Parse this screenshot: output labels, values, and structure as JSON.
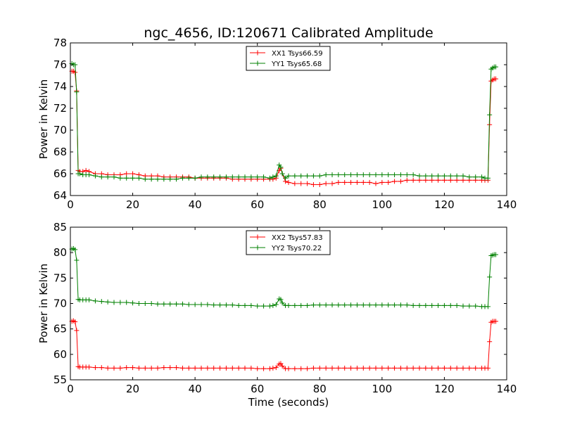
{
  "figure": {
    "title": "ngc_4656, ID:120671 Calibrated Amplitude"
  },
  "chart_data": [
    {
      "type": "line",
      "ylabel": "Power in Kelvin",
      "xlabel": "",
      "xlim": [
        0,
        140
      ],
      "ylim": [
        64,
        78
      ],
      "xticks": [
        0,
        20,
        40,
        60,
        80,
        100,
        120,
        140
      ],
      "yticks": [
        64,
        66,
        68,
        70,
        72,
        74,
        76,
        78
      ],
      "grid": false,
      "legend_position": "top-center",
      "series": [
        {
          "name": "XX1 Tsys66.59",
          "color": "#ff0000",
          "marker": "+",
          "x": [
            0.5,
            1,
            1.5,
            2,
            2.5,
            3,
            4,
            5,
            6,
            8,
            10,
            12,
            14,
            16,
            18,
            20,
            22,
            24,
            26,
            28,
            30,
            32,
            34,
            36,
            38,
            40,
            42,
            44,
            46,
            48,
            50,
            52,
            54,
            56,
            58,
            60,
            62,
            64,
            65,
            66,
            67,
            67.5,
            68,
            69,
            70,
            72,
            74,
            76,
            78,
            80,
            82,
            84,
            86,
            88,
            90,
            92,
            94,
            96,
            98,
            100,
            102,
            104,
            106,
            108,
            110,
            112,
            114,
            116,
            118,
            120,
            122,
            124,
            126,
            128,
            130,
            132,
            133,
            134,
            134.5,
            135,
            135.5,
            136,
            136.5
          ],
          "y": [
            75.4,
            75.4,
            75.3,
            73.6,
            66.3,
            66.2,
            66.2,
            66.3,
            66.2,
            66.0,
            66.0,
            65.9,
            65.9,
            65.9,
            66.0,
            66.0,
            65.9,
            65.8,
            65.8,
            65.8,
            65.7,
            65.7,
            65.7,
            65.7,
            65.7,
            65.6,
            65.6,
            65.6,
            65.6,
            65.6,
            65.6,
            65.5,
            65.5,
            65.5,
            65.5,
            65.5,
            65.5,
            65.5,
            65.5,
            65.6,
            66.3,
            66.5,
            66.0,
            65.3,
            65.2,
            65.1,
            65.1,
            65.1,
            65.0,
            65.0,
            65.1,
            65.1,
            65.2,
            65.2,
            65.2,
            65.2,
            65.2,
            65.2,
            65.1,
            65.2,
            65.2,
            65.3,
            65.3,
            65.4,
            65.4,
            65.4,
            65.4,
            65.4,
            65.4,
            65.4,
            65.4,
            65.4,
            65.4,
            65.4,
            65.4,
            65.4,
            65.4,
            65.4,
            70.5,
            74.5,
            74.6,
            74.7,
            74.7
          ]
        },
        {
          "name": "YY1 Tsys65.68",
          "color": "#008000",
          "marker": "+",
          "x": [
            0.5,
            1,
            1.5,
            2,
            2.5,
            3,
            4,
            5,
            6,
            8,
            10,
            12,
            14,
            16,
            18,
            20,
            22,
            24,
            26,
            28,
            30,
            32,
            34,
            36,
            38,
            40,
            42,
            44,
            46,
            48,
            50,
            52,
            54,
            56,
            58,
            60,
            62,
            64,
            65,
            66,
            67,
            67.5,
            68,
            69,
            70,
            72,
            74,
            76,
            78,
            80,
            82,
            84,
            86,
            88,
            90,
            92,
            94,
            96,
            98,
            100,
            102,
            104,
            106,
            108,
            110,
            112,
            114,
            116,
            118,
            120,
            122,
            124,
            126,
            128,
            130,
            132,
            133,
            134,
            134.5,
            135,
            135.5,
            136,
            136.5
          ],
          "y": [
            76.1,
            76.0,
            76.0,
            73.5,
            66.0,
            66.0,
            65.9,
            65.9,
            65.9,
            65.8,
            65.7,
            65.7,
            65.7,
            65.6,
            65.6,
            65.6,
            65.6,
            65.5,
            65.5,
            65.5,
            65.5,
            65.5,
            65.5,
            65.6,
            65.6,
            65.6,
            65.7,
            65.7,
            65.7,
            65.7,
            65.7,
            65.7,
            65.7,
            65.7,
            65.7,
            65.7,
            65.7,
            65.6,
            65.7,
            65.8,
            66.8,
            66.6,
            66.0,
            65.6,
            65.8,
            65.8,
            65.8,
            65.8,
            65.8,
            65.8,
            65.9,
            65.9,
            65.9,
            65.9,
            65.9,
            65.9,
            65.9,
            65.9,
            65.9,
            65.9,
            65.9,
            65.9,
            65.9,
            65.9,
            65.9,
            65.8,
            65.8,
            65.8,
            65.8,
            65.8,
            65.8,
            65.8,
            65.8,
            65.7,
            65.7,
            65.7,
            65.6,
            65.6,
            71.4,
            75.6,
            75.7,
            75.8,
            75.8
          ]
        }
      ]
    },
    {
      "type": "line",
      "ylabel": "Power in Kelvin",
      "xlabel": "Time (seconds)",
      "xlim": [
        0,
        140
      ],
      "ylim": [
        55,
        85
      ],
      "xticks": [
        0,
        20,
        40,
        60,
        80,
        100,
        120,
        140
      ],
      "yticks": [
        55,
        60,
        65,
        70,
        75,
        80,
        85
      ],
      "grid": false,
      "legend_position": "top-center",
      "series": [
        {
          "name": "XX2 Tsys57.83",
          "color": "#ff0000",
          "marker": "+",
          "x": [
            0.5,
            1,
            1.5,
            2,
            2.5,
            3,
            4,
            5,
            6,
            8,
            10,
            12,
            14,
            16,
            18,
            20,
            22,
            24,
            26,
            28,
            30,
            32,
            34,
            36,
            38,
            40,
            42,
            44,
            46,
            48,
            50,
            52,
            54,
            56,
            58,
            60,
            62,
            64,
            65,
            66,
            67,
            67.5,
            68,
            69,
            70,
            72,
            74,
            76,
            78,
            80,
            82,
            84,
            86,
            88,
            90,
            92,
            94,
            96,
            98,
            100,
            102,
            104,
            106,
            108,
            110,
            112,
            114,
            116,
            118,
            120,
            122,
            124,
            126,
            128,
            130,
            132,
            133,
            134,
            134.5,
            135,
            135.5,
            136,
            136.5
          ],
          "y": [
            66.5,
            66.6,
            66.4,
            64.7,
            57.6,
            57.5,
            57.5,
            57.5,
            57.5,
            57.4,
            57.4,
            57.3,
            57.3,
            57.3,
            57.4,
            57.4,
            57.3,
            57.3,
            57.3,
            57.3,
            57.4,
            57.4,
            57.4,
            57.3,
            57.3,
            57.3,
            57.3,
            57.3,
            57.3,
            57.3,
            57.3,
            57.3,
            57.3,
            57.3,
            57.3,
            57.2,
            57.2,
            57.2,
            57.3,
            57.4,
            58.1,
            58.2,
            57.7,
            57.2,
            57.2,
            57.2,
            57.2,
            57.2,
            57.3,
            57.3,
            57.3,
            57.3,
            57.3,
            57.3,
            57.3,
            57.3,
            57.3,
            57.3,
            57.3,
            57.3,
            57.3,
            57.3,
            57.3,
            57.3,
            57.3,
            57.3,
            57.3,
            57.3,
            57.3,
            57.3,
            57.3,
            57.3,
            57.3,
            57.3,
            57.3,
            57.3,
            57.3,
            57.3,
            62.5,
            66.3,
            66.5,
            66.5,
            66.5
          ]
        },
        {
          "name": "YY2 Tsys70.22",
          "color": "#008000",
          "marker": "+",
          "x": [
            0.5,
            1,
            1.5,
            2,
            2.5,
            3,
            4,
            5,
            6,
            8,
            10,
            12,
            14,
            16,
            18,
            20,
            22,
            24,
            26,
            28,
            30,
            32,
            34,
            36,
            38,
            40,
            42,
            44,
            46,
            48,
            50,
            52,
            54,
            56,
            58,
            60,
            62,
            64,
            65,
            66,
            67,
            67.5,
            68,
            69,
            70,
            72,
            74,
            76,
            78,
            80,
            82,
            84,
            86,
            88,
            90,
            92,
            94,
            96,
            98,
            100,
            102,
            104,
            106,
            108,
            110,
            112,
            114,
            116,
            118,
            120,
            122,
            124,
            126,
            128,
            130,
            132,
            133,
            134,
            134.5,
            135,
            135.5,
            136,
            136.5
          ],
          "y": [
            80.7,
            80.8,
            80.6,
            78.5,
            70.8,
            70.7,
            70.7,
            70.7,
            70.7,
            70.5,
            70.4,
            70.3,
            70.2,
            70.2,
            70.2,
            70.1,
            70.0,
            70.0,
            70.0,
            69.9,
            69.9,
            69.9,
            69.9,
            69.9,
            69.8,
            69.8,
            69.8,
            69.8,
            69.7,
            69.7,
            69.7,
            69.7,
            69.6,
            69.6,
            69.6,
            69.5,
            69.5,
            69.5,
            69.6,
            69.8,
            70.9,
            70.8,
            70.1,
            69.6,
            69.6,
            69.6,
            69.6,
            69.6,
            69.7,
            69.7,
            69.7,
            69.7,
            69.7,
            69.7,
            69.7,
            69.7,
            69.7,
            69.7,
            69.7,
            69.7,
            69.7,
            69.7,
            69.7,
            69.7,
            69.6,
            69.6,
            69.6,
            69.6,
            69.6,
            69.6,
            69.6,
            69.6,
            69.5,
            69.5,
            69.5,
            69.4,
            69.4,
            69.4,
            75.2,
            79.4,
            79.5,
            79.6,
            79.6
          ]
        }
      ]
    }
  ]
}
